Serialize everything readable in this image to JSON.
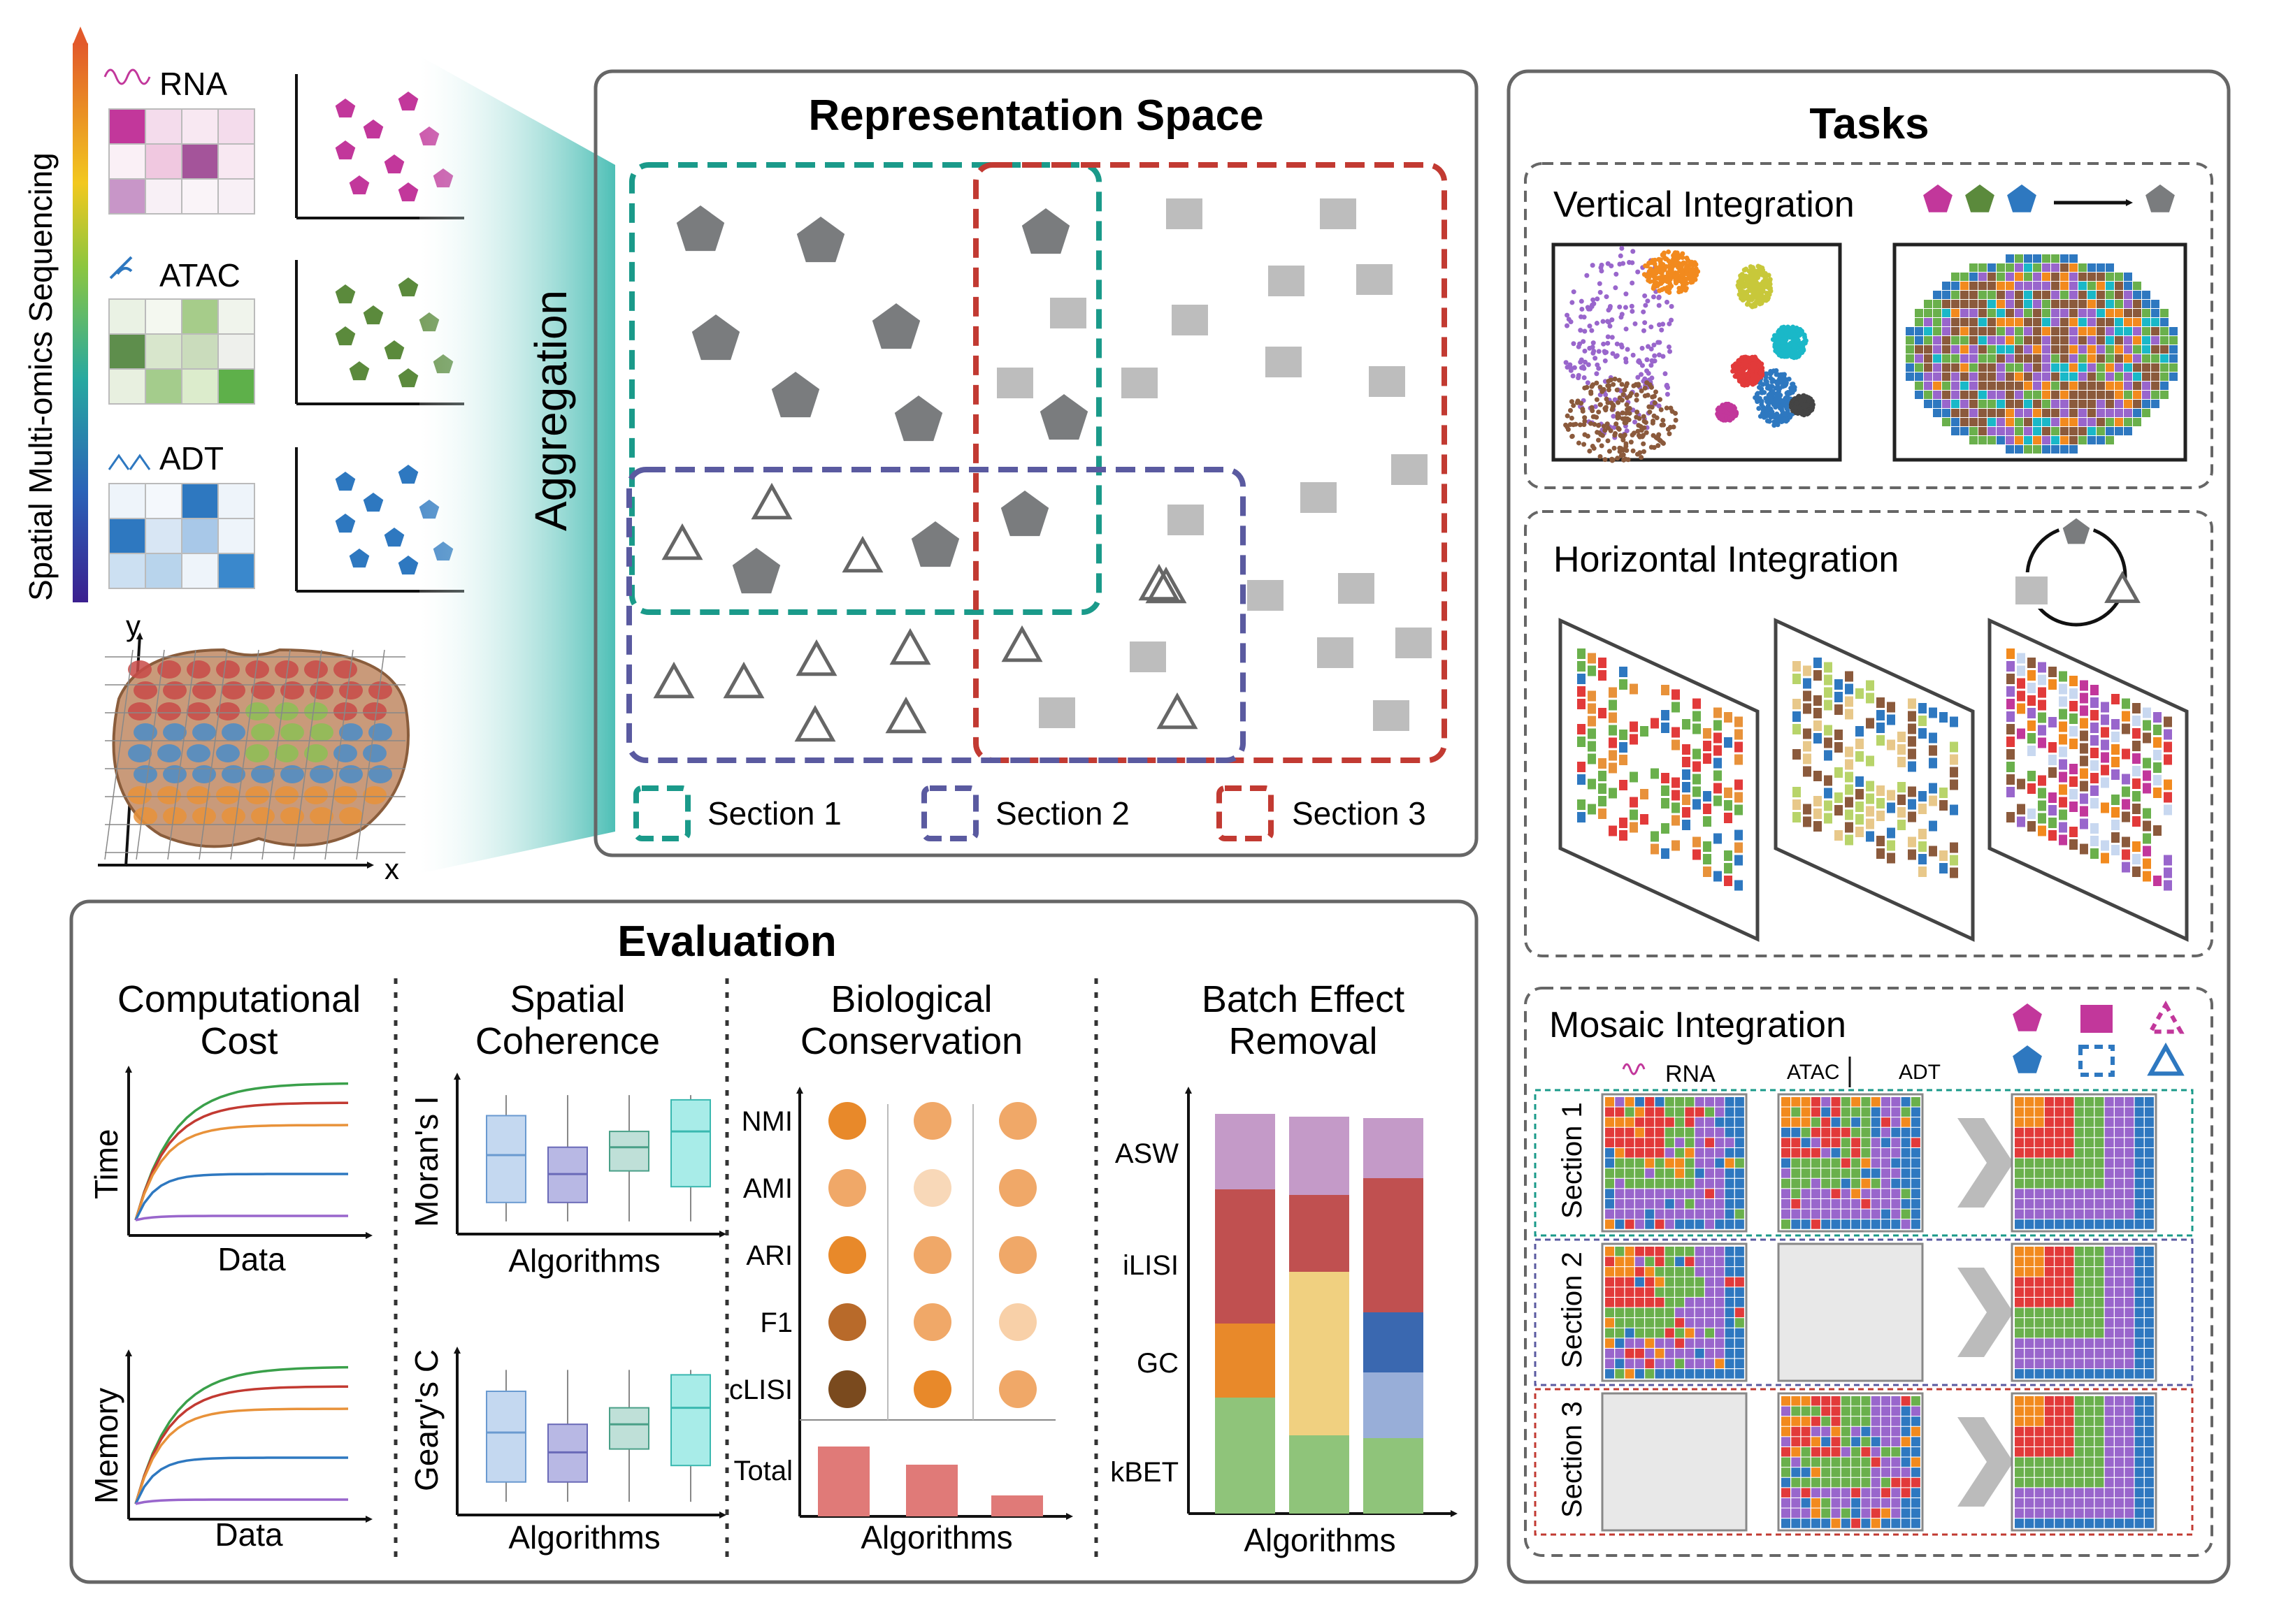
{
  "left_panel": {
    "axis_label": "Spatial Multi-omics Sequencing",
    "modalities": [
      {
        "name": "RNA",
        "color": "#c2379b"
      },
      {
        "name": "ATAC",
        "color": "#5b8a3c"
      },
      {
        "name": "ADT",
        "color": "#2e78c0"
      }
    ],
    "slice_axes": {
      "x": "x",
      "y": "y"
    },
    "aggregation_label": "Aggregation"
  },
  "representation": {
    "title": "Representation Space",
    "legend": [
      "Section 1",
      "Section 2",
      "Section 3"
    ],
    "section_colors": [
      "#1a9a8a",
      "#5a5aa0",
      "#c23a32"
    ]
  },
  "tasks": {
    "title": "Tasks",
    "vertical": {
      "title": "Vertical Integration"
    },
    "horizontal": {
      "title": "Horizontal  Integration"
    },
    "mosaic": {
      "title": "Mosaic Integration",
      "col_rna": "RNA",
      "col_atac": "ATAC",
      "col_adt": "ADT",
      "rows": [
        "Section 1",
        "Section 2",
        "Section 3"
      ]
    }
  },
  "evaluation": {
    "title": "Evaluation",
    "comp": {
      "title_line1": "Computational",
      "title_line2": "Cost",
      "ylabel_top": "Time",
      "ylabel_bottom": "Memory",
      "xlabel": "Data"
    },
    "spatial": {
      "title_line1": "Spatial",
      "title_line2": "Coherence",
      "ylabel_top": "Moran's I",
      "ylabel_bottom": "Geary's C",
      "xlabel": "Algorithms"
    },
    "bio": {
      "title_line1": "Biological",
      "title_line2": "Conservation",
      "metrics": [
        "NMI",
        "AMI",
        "ARI",
        "F1",
        "cLISI"
      ],
      "total_label": "Total",
      "xlabel": "Algorithms"
    },
    "batch": {
      "title_line1": "Batch Effect",
      "title_line2": "Removal",
      "metrics": [
        "ASW",
        "iLISI",
        "GC",
        "kBET"
      ],
      "xlabel": "Algorithms"
    }
  }
}
